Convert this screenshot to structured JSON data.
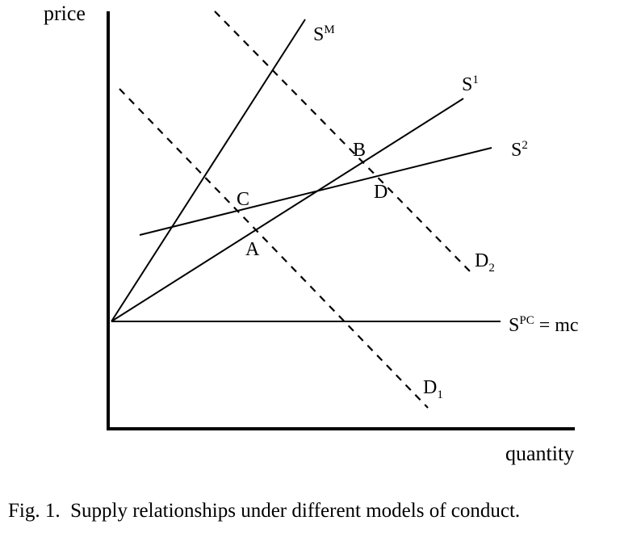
{
  "axes": {
    "y_label": "price",
    "x_label": "quantity"
  },
  "curves": {
    "s_m": {
      "base": "S",
      "sup": "M"
    },
    "s_1": {
      "base": "S",
      "sup": "1"
    },
    "s_2": {
      "base": "S",
      "sup": "2"
    },
    "s_pc": {
      "base": "S",
      "sup": "PC",
      "suffix": " = mc"
    },
    "d_1": {
      "base": "D",
      "sub": "1"
    },
    "d_2": {
      "base": "D",
      "sub": "2"
    }
  },
  "points": {
    "a": "A",
    "b": "B",
    "c": "C",
    "d": "D"
  },
  "caption": "Fig. 1.  Supply relationships under different models of conduct."
}
